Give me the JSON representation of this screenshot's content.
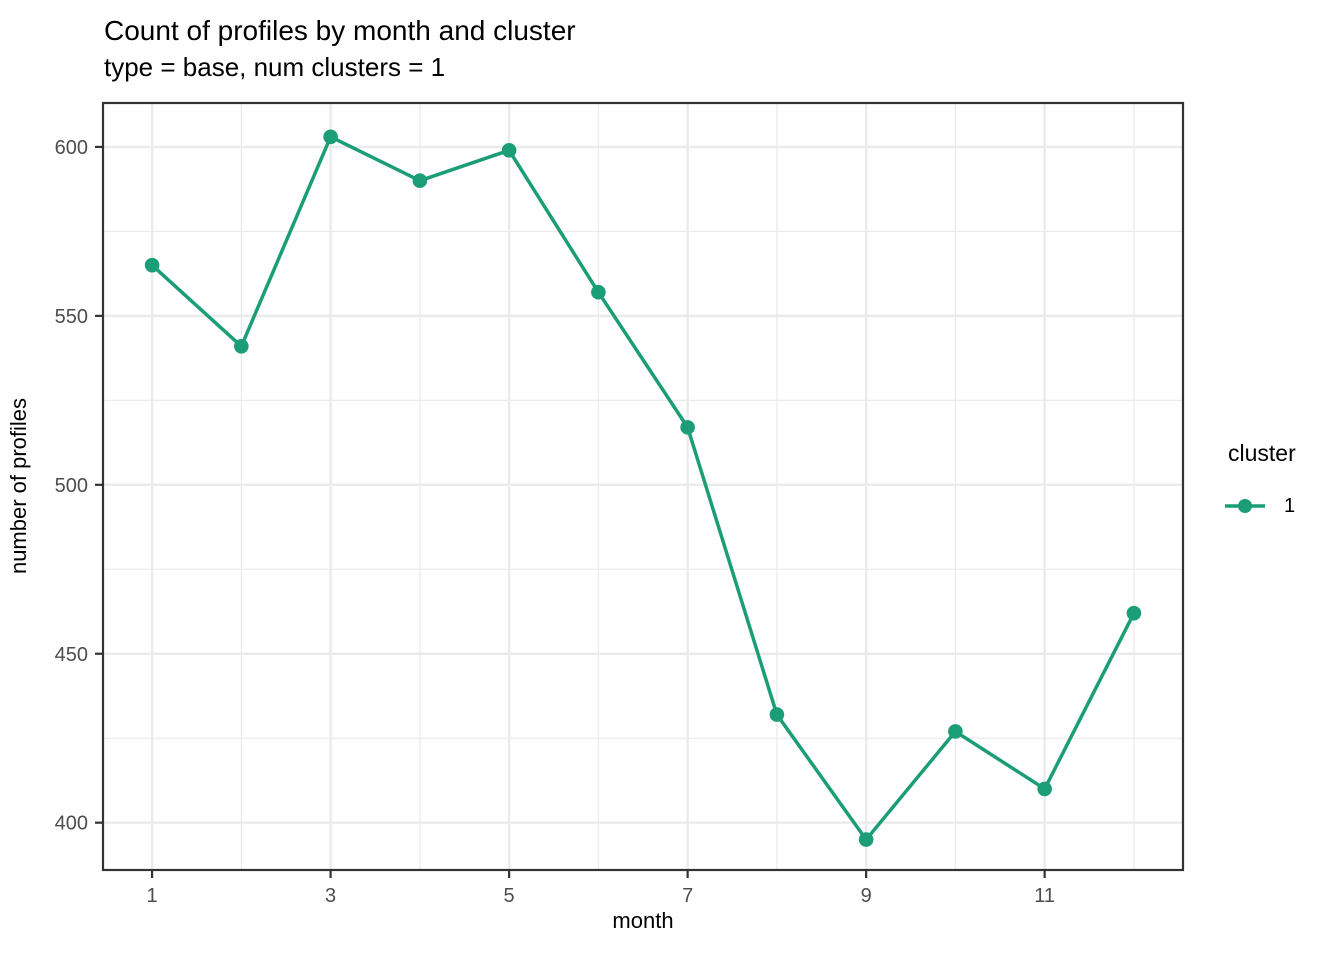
{
  "chart_data": {
    "type": "line",
    "title": "Count of profiles by month and cluster",
    "subtitle": "type = base, num clusters = 1",
    "xlabel": "month",
    "ylabel": "number of profiles",
    "x": [
      1,
      2,
      3,
      4,
      5,
      6,
      7,
      8,
      9,
      10,
      11,
      12
    ],
    "series": [
      {
        "name": "1",
        "values": [
          565,
          541,
          603,
          590,
          599,
          557,
          517,
          432,
          395,
          427,
          410,
          462
        ],
        "color": "#1b9e77"
      }
    ],
    "legend": {
      "title": "cluster",
      "entries": [
        {
          "label": "1",
          "color": "#1b9e77"
        }
      ],
      "position": "right"
    },
    "axes": {
      "x_ticks": [
        1,
        3,
        5,
        7,
        9,
        11
      ],
      "x_tick_labels": [
        "1",
        "3",
        "5",
        "7",
        "9",
        "11"
      ],
      "x_minor": [
        2,
        4,
        6,
        8,
        10,
        12
      ],
      "y_ticks": [
        400,
        450,
        500,
        550,
        600
      ],
      "y_tick_labels": [
        "400",
        "450",
        "500",
        "550",
        "600"
      ],
      "y_minor": [
        425,
        475,
        525,
        575
      ],
      "xlim": [
        0.45,
        12.55
      ],
      "ylim": [
        386,
        613
      ],
      "grid": true
    },
    "colors": {
      "series": "#1b9e77",
      "grid_major": "#ebebeb",
      "grid_minor": "#ebebeb",
      "panel_border": "#333333",
      "tick_mark": "#333333",
      "tick_label": "#4d4d4d",
      "text": "#000000",
      "background": "#ffffff"
    }
  }
}
